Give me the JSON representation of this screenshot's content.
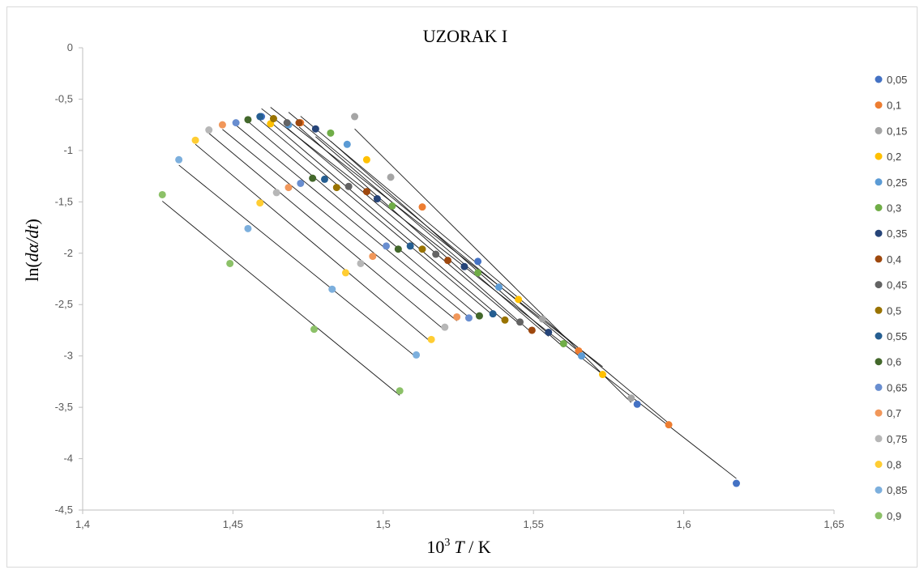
{
  "chart_data": {
    "type": "scatter",
    "title": "UZORAK I",
    "xlabel": {
      "prefix": "10",
      "sup": "3",
      "var": "T",
      "unit": " / K"
    },
    "ylabel": {
      "pre": "ln(",
      "var": "dα/dt",
      "post": ")"
    },
    "xlim": [
      1.4,
      1.65
    ],
    "ylim": [
      -4.5,
      0
    ],
    "x_ticks": [
      "1,4",
      "1,45",
      "1,5",
      "1,55",
      "1,6",
      "1,65"
    ],
    "x_tick_values": [
      1.4,
      1.45,
      1.5,
      1.55,
      1.6,
      1.65
    ],
    "y_ticks": [
      "0",
      "-0,5",
      "-1",
      "-1,5",
      "-2",
      "-2,5",
      "-3",
      "-3,5",
      "-4",
      "-4,5"
    ],
    "y_tick_values": [
      0,
      -0.5,
      -1,
      -1.5,
      -2,
      -2.5,
      -3,
      -3.5,
      -4,
      -4.5
    ],
    "grid": false,
    "legend_position": "right",
    "series": [
      {
        "name": "0,05",
        "color": "#4472C4",
        "points": [
          [
            1.4595,
            -0.67
          ],
          [
            1.5315,
            -2.08
          ],
          [
            1.5845,
            -3.47
          ],
          [
            1.6175,
            -4.24
          ]
        ]
      },
      {
        "name": "0,1",
        "color": "#ED7D31",
        "points": [
          [
            1.4725,
            -0.73
          ],
          [
            1.513,
            -1.55
          ],
          [
            1.565,
            -2.95
          ],
          [
            1.595,
            -3.67
          ]
        ]
      },
      {
        "name": "0,15",
        "color": "#A5A5A5",
        "points": [
          [
            1.4905,
            -0.67
          ],
          [
            1.5025,
            -1.26
          ],
          [
            1.553,
            -2.64
          ],
          [
            1.5825,
            -3.41
          ]
        ]
      },
      {
        "name": "0,2",
        "color": "#FFC000",
        "points": [
          [
            1.4625,
            -0.74
          ],
          [
            1.4945,
            -1.09
          ],
          [
            1.545,
            -2.45
          ],
          [
            1.573,
            -3.18
          ]
        ]
      },
      {
        "name": "0,25",
        "color": "#5B9BD5",
        "points": [
          [
            1.4685,
            -0.75
          ],
          [
            1.488,
            -0.94
          ],
          [
            1.5385,
            -2.33
          ],
          [
            1.566,
            -3.0
          ]
        ]
      },
      {
        "name": "0,3",
        "color": "#70AD47",
        "points": [
          [
            1.4825,
            -0.83
          ],
          [
            1.503,
            -1.54
          ],
          [
            1.5315,
            -2.19
          ],
          [
            1.56,
            -2.88
          ]
        ]
      },
      {
        "name": "0,35",
        "color": "#264478",
        "points": [
          [
            1.4775,
            -0.79
          ],
          [
            1.498,
            -1.47
          ],
          [
            1.527,
            -2.13
          ],
          [
            1.555,
            -2.77
          ]
        ]
      },
      {
        "name": "0,4",
        "color": "#9E480E",
        "points": [
          [
            1.472,
            -0.73
          ],
          [
            1.4945,
            -1.4
          ],
          [
            1.5215,
            -2.07
          ],
          [
            1.5495,
            -2.75
          ]
        ]
      },
      {
        "name": "0,45",
        "color": "#636363",
        "points": [
          [
            1.468,
            -0.73
          ],
          [
            1.4885,
            -1.35
          ],
          [
            1.5175,
            -2.01
          ],
          [
            1.5455,
            -2.67
          ]
        ]
      },
      {
        "name": "0,5",
        "color": "#997300",
        "points": [
          [
            1.4635,
            -0.69
          ],
          [
            1.4845,
            -1.36
          ],
          [
            1.513,
            -1.96
          ],
          [
            1.5405,
            -2.65
          ]
        ]
      },
      {
        "name": "0,55",
        "color": "#255E91",
        "points": [
          [
            1.459,
            -0.67
          ],
          [
            1.4805,
            -1.28
          ],
          [
            1.509,
            -1.93
          ],
          [
            1.5365,
            -2.59
          ]
        ]
      },
      {
        "name": "0,6",
        "color": "#43682B",
        "points": [
          [
            1.455,
            -0.7
          ],
          [
            1.4765,
            -1.27
          ],
          [
            1.505,
            -1.96
          ],
          [
            1.532,
            -2.61
          ]
        ]
      },
      {
        "name": "0,65",
        "color": "#698ED0",
        "points": [
          [
            1.451,
            -0.73
          ],
          [
            1.4725,
            -1.32
          ],
          [
            1.501,
            -1.93
          ],
          [
            1.5285,
            -2.63
          ]
        ]
      },
      {
        "name": "0,7",
        "color": "#F1975A",
        "points": [
          [
            1.4465,
            -0.75
          ],
          [
            1.4685,
            -1.36
          ],
          [
            1.4965,
            -2.03
          ],
          [
            1.5245,
            -2.62
          ]
        ]
      },
      {
        "name": "0,75",
        "color": "#B7B7B7",
        "points": [
          [
            1.442,
            -0.8
          ],
          [
            1.4645,
            -1.41
          ],
          [
            1.4925,
            -2.1
          ],
          [
            1.5205,
            -2.72
          ]
        ]
      },
      {
        "name": "0,8",
        "color": "#FFCD33",
        "points": [
          [
            1.4375,
            -0.9
          ],
          [
            1.459,
            -1.51
          ],
          [
            1.4875,
            -2.19
          ],
          [
            1.516,
            -2.84
          ]
        ]
      },
      {
        "name": "0,85",
        "color": "#7CAFDD",
        "points": [
          [
            1.432,
            -1.09
          ],
          [
            1.455,
            -1.76
          ],
          [
            1.483,
            -2.35
          ],
          [
            1.511,
            -2.99
          ]
        ]
      },
      {
        "name": "0,9",
        "color": "#8CC168",
        "points": [
          [
            1.4265,
            -1.43
          ],
          [
            1.449,
            -2.1
          ],
          [
            1.477,
            -2.74
          ],
          [
            1.5055,
            -3.34
          ]
        ]
      }
    ]
  }
}
